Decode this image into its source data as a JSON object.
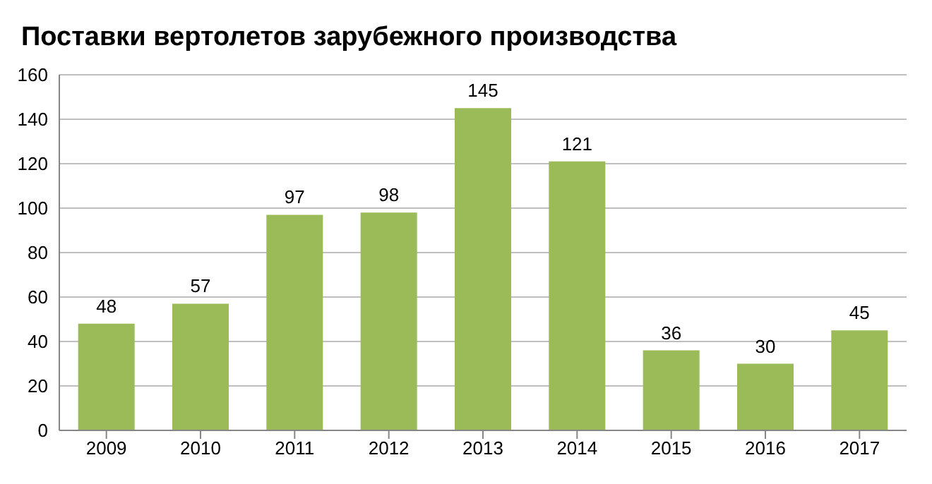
{
  "chart_data": {
    "type": "bar",
    "title": "Поставки вертолетов зарубежного производства",
    "categories": [
      "2009",
      "2010",
      "2011",
      "2012",
      "2013",
      "2014",
      "2015",
      "2016",
      "2017"
    ],
    "values": [
      48,
      57,
      97,
      98,
      145,
      121,
      36,
      30,
      45
    ],
    "color": "#9bbb59",
    "ylim": [
      0,
      160
    ],
    "yticks": [
      0,
      20,
      40,
      60,
      80,
      100,
      120,
      140,
      160
    ],
    "grid": "y",
    "data_labels": true
  }
}
